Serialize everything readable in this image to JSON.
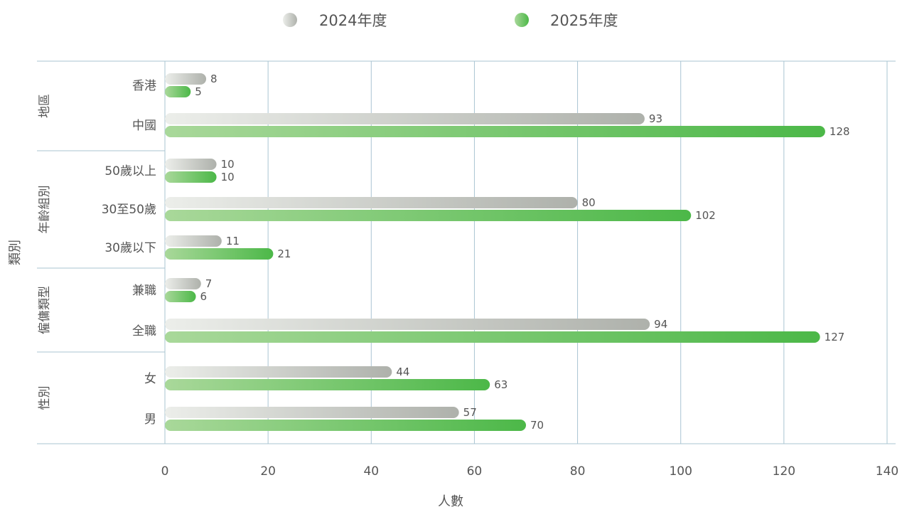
{
  "chart_data": {
    "type": "bar",
    "orientation": "horizontal",
    "legend": {
      "placement": "top-center",
      "items": [
        {
          "label": "2024年度",
          "color": "#b0b3ad"
        },
        {
          "label": "2025年度",
          "color": "#4cb848"
        }
      ]
    },
    "xlabel": "人數",
    "ylabel": "類別",
    "xlim": [
      0,
      140
    ],
    "xticks": [
      0,
      20,
      40,
      60,
      80,
      100,
      120,
      140
    ],
    "grid": true,
    "groups": [
      {
        "label": "地區",
        "categories": [
          {
            "label": "香港",
            "values": [
              8,
              5
            ]
          },
          {
            "label": "中國",
            "values": [
              93,
              128
            ]
          }
        ]
      },
      {
        "label": "年齡組別",
        "categories": [
          {
            "label": "50歲以上",
            "values": [
              10,
              10
            ]
          },
          {
            "label": "30至50歲",
            "values": [
              80,
              102
            ]
          },
          {
            "label": "30歲以下",
            "values": [
              11,
              21
            ]
          }
        ]
      },
      {
        "label": "僱傭類型",
        "categories": [
          {
            "label": "兼職",
            "values": [
              7,
              6
            ]
          },
          {
            "label": "全職",
            "values": [
              94,
              127
            ]
          }
        ]
      },
      {
        "label": "性別",
        "categories": [
          {
            "label": "女",
            "values": [
              44,
              63
            ]
          },
          {
            "label": "男",
            "values": [
              57,
              70
            ]
          }
        ]
      }
    ],
    "series": [
      {
        "name": "2024年度",
        "values": [
          8,
          93,
          10,
          80,
          11,
          7,
          94,
          44,
          57
        ]
      },
      {
        "name": "2025年度",
        "values": [
          5,
          128,
          10,
          102,
          21,
          6,
          127,
          63,
          70
        ]
      }
    ]
  }
}
